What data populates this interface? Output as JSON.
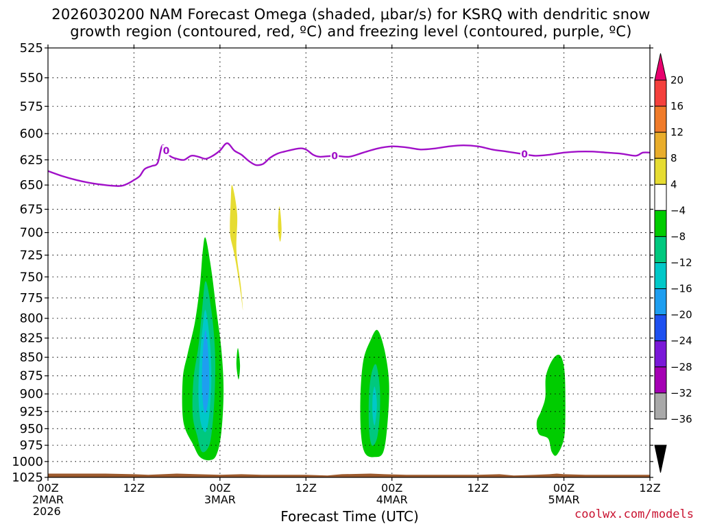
{
  "chart_data": {
    "type": "heatmap",
    "title": "2026030200 NAM Forecast Omega (shaded, μbar/s) for KSRQ with dendritic snow",
    "subtitle": "growth region (contoured, red, ºC) and freezing level (contoured, purple, ºC)",
    "xlabel": "Forecast Time (UTC)",
    "ylabel": "",
    "y_axis": {
      "ticks": [
        525,
        550,
        575,
        600,
        625,
        650,
        675,
        700,
        725,
        750,
        775,
        800,
        825,
        850,
        875,
        900,
        925,
        950,
        975,
        1000,
        1025
      ],
      "range": [
        525,
        1025
      ],
      "inverted": true,
      "scale": "log-pressure"
    },
    "x_axis": {
      "range_hours": [
        0,
        84
      ],
      "ticks": [
        {
          "hour": 0,
          "label": "00Z",
          "sub": "2MAR"
        },
        {
          "hour": 12,
          "label": "12Z",
          "sub": ""
        },
        {
          "hour": 24,
          "label": "00Z",
          "sub": "3MAR"
        },
        {
          "hour": 36,
          "label": "12Z",
          "sub": ""
        },
        {
          "hour": 48,
          "label": "00Z",
          "sub": "4MAR"
        },
        {
          "hour": 60,
          "label": "12Z",
          "sub": ""
        },
        {
          "hour": 72,
          "label": "00Z",
          "sub": "5MAR"
        },
        {
          "hour": 84,
          "label": "12Z",
          "sub": ""
        }
      ],
      "year_label": "2026"
    },
    "grid": true,
    "colorbar": {
      "placement": "right",
      "labels": [
        "20",
        "16",
        "12",
        "8",
        "4",
        "−4",
        "−8",
        "−12",
        "−16",
        "−20",
        "−24",
        "−28",
        "−32",
        "−36"
      ],
      "colors": [
        "#e8006e",
        "#f4403c",
        "#f07b2a",
        "#e9ad2b",
        "#e6dc32",
        "#ffffff",
        "#00cc00",
        "#00c87e",
        "#00c8c8",
        "#1e9ef0",
        "#1e50f0",
        "#7a18d8",
        "#a500b4",
        "#a9a9a9",
        "#000000"
      ]
    },
    "freezing_level": {
      "color": "#a010c8",
      "contour_label": "0",
      "label_hours": [
        16.5,
        40,
        66.5
      ],
      "points": [
        [
          0,
          636
        ],
        [
          2,
          641
        ],
        [
          4,
          645
        ],
        [
          6,
          648
        ],
        [
          8,
          650
        ],
        [
          10,
          651
        ],
        [
          11,
          649
        ],
        [
          12,
          645
        ],
        [
          12.8,
          641
        ],
        [
          13.5,
          634
        ],
        [
          14.5,
          631
        ],
        [
          15.3,
          628
        ],
        [
          16,
          611
        ],
        [
          17,
          621
        ],
        [
          18,
          624
        ],
        [
          19,
          625
        ],
        [
          20,
          621
        ],
        [
          21,
          622
        ],
        [
          22,
          624
        ],
        [
          23,
          621
        ],
        [
          24,
          616
        ],
        [
          25,
          609
        ],
        [
          26,
          616
        ],
        [
          27,
          620
        ],
        [
          28,
          626
        ],
        [
          29,
          630
        ],
        [
          30,
          629
        ],
        [
          31,
          623
        ],
        [
          32,
          619
        ],
        [
          33,
          617
        ],
        [
          35,
          614
        ],
        [
          36,
          615
        ],
        [
          37,
          620
        ],
        [
          38,
          622
        ],
        [
          40,
          621
        ],
        [
          42,
          622
        ],
        [
          44,
          618
        ],
        [
          46,
          614
        ],
        [
          48,
          612
        ],
        [
          50,
          613
        ],
        [
          52,
          615
        ],
        [
          54,
          614
        ],
        [
          56,
          612
        ],
        [
          58,
          611
        ],
        [
          60,
          612
        ],
        [
          62,
          615
        ],
        [
          64,
          617
        ],
        [
          66,
          619
        ],
        [
          68,
          621
        ],
        [
          70,
          620
        ],
        [
          72,
          618
        ],
        [
          74,
          617
        ],
        [
          76,
          617
        ],
        [
          78,
          618
        ],
        [
          80,
          619
        ],
        [
          82,
          621
        ],
        [
          83,
          618
        ],
        [
          84,
          618
        ]
      ]
    },
    "omega_regions": [
      {
        "value_range": "-8 to -4",
        "color": "#00cc00",
        "points": [
          [
            22,
            706
          ],
          [
            22.8,
            742
          ],
          [
            23.5,
            790
          ],
          [
            24.2,
            840
          ],
          [
            24.5,
            895
          ],
          [
            24.2,
            955
          ],
          [
            23.5,
            990
          ],
          [
            22.5,
            998
          ],
          [
            21.2,
            993
          ],
          [
            20.3,
            975
          ],
          [
            18.9,
            940
          ],
          [
            18.8,
            880
          ],
          [
            19.5,
            845
          ],
          [
            20.5,
            805
          ],
          [
            21.2,
            760
          ],
          [
            21.6,
            720
          ]
        ]
      },
      {
        "value_range": "-12 to -8",
        "color": "#00c87e",
        "points": [
          [
            22,
            755
          ],
          [
            22.8,
            790
          ],
          [
            23.3,
            840
          ],
          [
            23.3,
            890
          ],
          [
            23,
            940
          ],
          [
            22.5,
            975
          ],
          [
            21.5,
            985
          ],
          [
            20.8,
            960
          ],
          [
            20.2,
            930
          ],
          [
            20.3,
            880
          ],
          [
            21,
            835
          ],
          [
            21.5,
            790
          ]
        ]
      },
      {
        "value_range": "-16 to -12",
        "color": "#00c8c8",
        "points": [
          [
            22,
            790
          ],
          [
            22.6,
            830
          ],
          [
            22.8,
            880
          ],
          [
            22.5,
            930
          ],
          [
            22,
            955
          ],
          [
            21.3,
            940
          ],
          [
            21,
            900
          ],
          [
            21.2,
            850
          ],
          [
            21.6,
            810
          ]
        ]
      },
      {
        "value_range": "-20 to -16",
        "color": "#1e9ef0",
        "points": [
          [
            22,
            815
          ],
          [
            22.4,
            850
          ],
          [
            22.5,
            890
          ],
          [
            22.2,
            920
          ],
          [
            21.8,
            925
          ],
          [
            21.5,
            890
          ],
          [
            21.6,
            845
          ]
        ]
      },
      {
        "value_range": "4 to 8",
        "color": "#e6dc32",
        "points": [
          [
            25.7,
            650
          ],
          [
            26.4,
            680
          ],
          [
            26.3,
            720
          ],
          [
            26.9,
            760
          ],
          [
            27.2,
            790
          ],
          [
            26.9,
            770
          ],
          [
            26.4,
            742
          ],
          [
            25.9,
            720
          ],
          [
            25.4,
            700
          ],
          [
            25.5,
            668
          ]
        ]
      },
      {
        "value_range": "4 to 8",
        "color": "#e6dc32",
        "points": [
          [
            32.3,
            672
          ],
          [
            32.6,
            695
          ],
          [
            32.4,
            710
          ],
          [
            32.1,
            695
          ]
        ]
      },
      {
        "value_range": "-8 to -4",
        "color": "#00cc00",
        "points": [
          [
            26.5,
            838
          ],
          [
            26.8,
            860
          ],
          [
            26.6,
            880
          ],
          [
            26.3,
            860
          ]
        ]
      },
      {
        "value_range": "-8 to -4",
        "color": "#00cc00",
        "points": [
          [
            46,
            815
          ],
          [
            47,
            842
          ],
          [
            47.6,
            885
          ],
          [
            47.4,
            940
          ],
          [
            46.8,
            985
          ],
          [
            45.6,
            993
          ],
          [
            44.3,
            988
          ],
          [
            43.7,
            960
          ],
          [
            43.6,
            905
          ],
          [
            44,
            855
          ],
          [
            45,
            828
          ]
        ]
      },
      {
        "value_range": "-12 to -8",
        "color": "#00c87e",
        "points": [
          [
            45.8,
            860
          ],
          [
            46.3,
            890
          ],
          [
            46.3,
            930
          ],
          [
            45.9,
            965
          ],
          [
            45.2,
            975
          ],
          [
            44.8,
            950
          ],
          [
            44.8,
            900
          ],
          [
            45.2,
            870
          ]
        ]
      },
      {
        "value_range": "-16 to -12",
        "color": "#00c8c8",
        "points": [
          [
            45.6,
            890
          ],
          [
            45.9,
            915
          ],
          [
            45.6,
            945
          ],
          [
            45.3,
            930
          ],
          [
            45.3,
            905
          ]
        ]
      },
      {
        "value_range": "-8 to -4",
        "color": "#00cc00",
        "points": [
          [
            71.5,
            848
          ],
          [
            72.1,
            870
          ],
          [
            72.2,
            925
          ],
          [
            72,
            965
          ],
          [
            71,
            990
          ],
          [
            70.3,
            985
          ],
          [
            69.8,
            965
          ],
          [
            68.5,
            958
          ],
          [
            68.2,
            940
          ],
          [
            68.8,
            925
          ],
          [
            69.4,
            905
          ],
          [
            69.5,
            875
          ],
          [
            70.5,
            852
          ]
        ]
      }
    ],
    "ground": {
      "color": "#9c5a2d",
      "top_points": [
        [
          0,
          1019
        ],
        [
          4,
          1019
        ],
        [
          8,
          1019
        ],
        [
          12,
          1020
        ],
        [
          14,
          1021
        ],
        [
          18,
          1019
        ],
        [
          21,
          1020
        ],
        [
          24,
          1021
        ],
        [
          27,
          1020
        ],
        [
          30,
          1021
        ],
        [
          36,
          1021
        ],
        [
          39,
          1022
        ],
        [
          41,
          1020
        ],
        [
          45,
          1019
        ],
        [
          47,
          1020
        ],
        [
          50,
          1021
        ],
        [
          60,
          1021
        ],
        [
          63,
          1020
        ],
        [
          65,
          1022
        ],
        [
          68,
          1021
        ],
        [
          70,
          1020
        ],
        [
          71,
          1019
        ],
        [
          72,
          1020
        ],
        [
          75,
          1021
        ],
        [
          84,
          1021
        ]
      ]
    }
  },
  "credit": "coolwx.com/models"
}
